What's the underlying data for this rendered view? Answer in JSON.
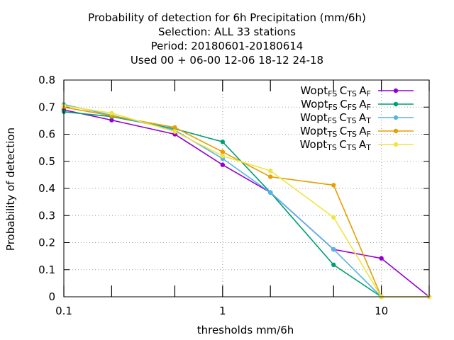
{
  "chart_data": {
    "type": "line",
    "title_lines": [
      "Probability of detection  for 6h Precipitation (mm/6h)",
      "Selection: ALL     33 stations",
      "Period: 20180601-20180614",
      "Used  00 + 06-00 12-06 18-12 24-18"
    ],
    "xlabel": "thresholds mm/6h",
    "ylabel": "Probability of detection",
    "x_scale": "log",
    "xlim": [
      0.1,
      20
    ],
    "ylim": [
      0,
      0.8
    ],
    "x_ticks": [
      0.1,
      1,
      10
    ],
    "x_tick_labels": [
      "0.1",
      "1",
      "10"
    ],
    "x_minor_ticks": [
      0.2,
      0.5,
      2,
      5,
      20
    ],
    "y_ticks": [
      0,
      0.1,
      0.2,
      0.3,
      0.4,
      0.5,
      0.6,
      0.7,
      0.8
    ],
    "y_tick_labels": [
      "0",
      "0.1",
      "0.2",
      "0.3",
      "0.4",
      "0.5",
      "0.6",
      "0.7",
      "0.8"
    ],
    "grid": true,
    "legend_position": "top-right",
    "series": [
      {
        "name": "Wopt",
        "sub1": "FS",
        "mid1": "C",
        "sub2": "TS",
        "mid2": "A",
        "sub3": "F",
        "color": "#9400d3",
        "x": [
          0.1,
          0.2,
          0.5,
          1,
          2,
          5,
          10,
          20
        ],
        "y": [
          0.69,
          0.652,
          0.6,
          0.487,
          0.385,
          0.175,
          0.142,
          0
        ]
      },
      {
        "name": "Wopt",
        "sub1": "FS",
        "mid1": "C",
        "sub2": "FS",
        "mid2": "A",
        "sub3": "F",
        "color": "#009e73",
        "x": [
          0.1,
          0.2,
          0.5,
          1,
          2,
          5,
          10
        ],
        "y": [
          0.683,
          0.665,
          0.62,
          0.572,
          0.385,
          0.118,
          0
        ]
      },
      {
        "name": "Wopt",
        "sub1": "FS",
        "mid1": "C",
        "sub2": "TS",
        "mid2": "A",
        "sub3": "T",
        "color": "#56b4e9",
        "x": [
          0.1,
          0.2,
          0.5,
          1,
          2,
          5,
          10
        ],
        "y": [
          0.71,
          0.67,
          0.615,
          0.51,
          0.385,
          0.175,
          0
        ]
      },
      {
        "name": "Wopt",
        "sub1": "TS",
        "mid1": "C",
        "sub2": "TS",
        "mid2": "A",
        "sub3": "F",
        "color": "#e69f00",
        "x": [
          0.1,
          0.2,
          0.5,
          1,
          2,
          5,
          10
        ],
        "y": [
          0.7,
          0.668,
          0.625,
          0.535,
          0.443,
          0.412,
          0
        ]
      },
      {
        "name": "Wopt",
        "sub1": "TS",
        "mid1": "C",
        "sub2": "TS",
        "mid2": "A",
        "sub3": "T",
        "color": "#f0e442",
        "x": [
          0.1,
          0.2,
          0.5,
          1,
          2,
          5,
          10,
          20
        ],
        "y": [
          0.705,
          0.678,
          0.61,
          0.52,
          0.465,
          0.293,
          0,
          0
        ]
      }
    ]
  }
}
